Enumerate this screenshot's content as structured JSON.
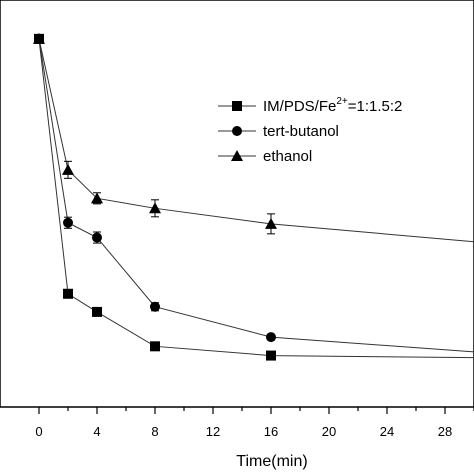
{
  "chart_data": {
    "type": "line",
    "title": "",
    "xlabel": "Time(min)",
    "ylabel": "",
    "xlim": [
      -2.5,
      30.5
    ],
    "ylim": [
      0,
      1.0
    ],
    "xticks": [
      0,
      4,
      8,
      12,
      16,
      20,
      24,
      28
    ],
    "grid": false,
    "legend_position": "center-right",
    "series": [
      {
        "name": "IM/PDS/Fe",
        "name_superscript": "2+",
        "name_suffix": "=1:1.5:2",
        "marker": "square",
        "x": [
          0,
          2,
          4,
          8,
          16,
          31
        ],
        "y": [
          0.995,
          0.306,
          0.257,
          0.164,
          0.139,
          0.133
        ],
        "error": [
          0,
          0,
          0,
          0,
          0,
          0
        ]
      },
      {
        "name": "tert-butanol",
        "marker": "circle",
        "x": [
          0,
          2,
          4,
          8,
          16,
          31
        ],
        "y": [
          0.995,
          0.498,
          0.458,
          0.271,
          0.189,
          0.146
        ],
        "error": [
          0,
          0.015,
          0.015,
          0.011,
          0,
          0
        ]
      },
      {
        "name": "ethanol",
        "marker": "triangle",
        "x": [
          0,
          2,
          4,
          8,
          16,
          31
        ],
        "y": [
          0.995,
          0.641,
          0.564,
          0.537,
          0.495,
          0.443
        ],
        "error": [
          0,
          0.023,
          0.015,
          0.023,
          0.027,
          0
        ]
      }
    ]
  }
}
